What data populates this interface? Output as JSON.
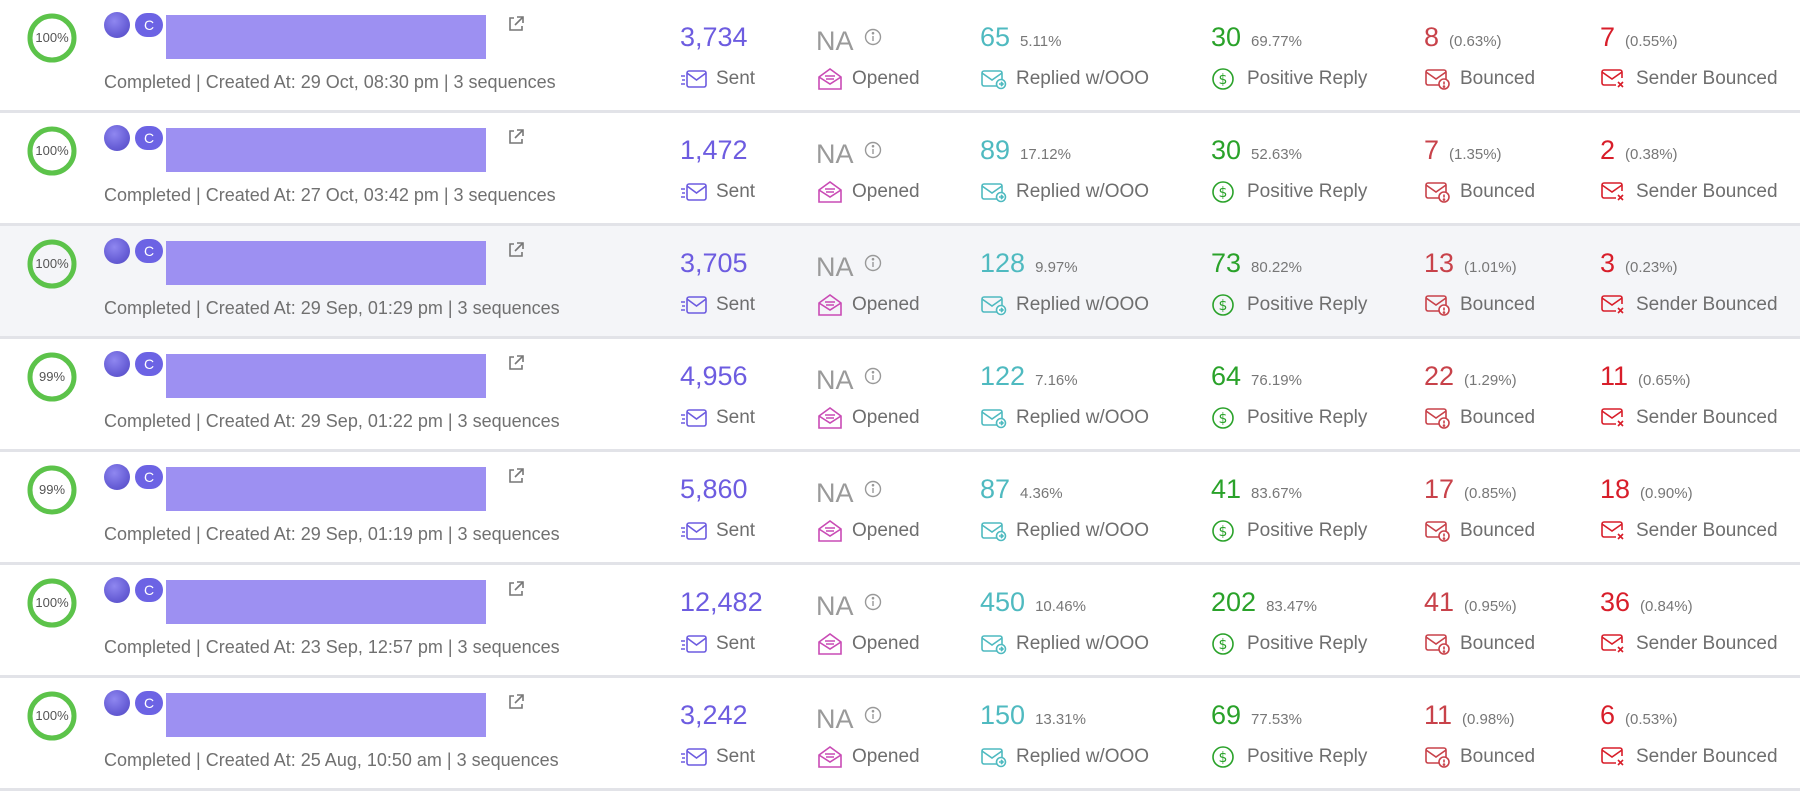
{
  "labels": {
    "sent": "Sent",
    "opened": "Opened",
    "replied": "Replied w/OOO",
    "positive": "Positive Reply",
    "bounced": "Bounced",
    "sender_bounced": "Sender Bounced",
    "avatar_letter": "C"
  },
  "colors": {
    "progress_ring": "#5cc34a",
    "sent": "#6d5ce0",
    "opened_na": "#9a9a9a",
    "replied": "#4fbac0",
    "positive": "#2aa22a",
    "bounced": "#c8424a",
    "sender_bounced": "#d81e2a",
    "redaction": "#9d90f2"
  },
  "icons": {
    "ring": "progress-ring",
    "avatar": "campaign-avatar",
    "external": "external-link-icon",
    "info": "info-icon",
    "sent": "send-mail-icon",
    "opened": "opened-mail-icon",
    "replied": "reply-mail-icon",
    "positive": "dollar-circle-icon",
    "bounced": "bounce-mail-icon",
    "sender_bounced": "sender-bounce-mail-icon"
  },
  "campaigns": [
    {
      "progress": "100%",
      "progress_value": 1.0,
      "subline": "Completed | Created At: 29 Oct, 08:30 pm | 3 sequences",
      "sent": "3,734",
      "opened": "NA",
      "replied": "65",
      "replied_pct": "5.11%",
      "positive": "30",
      "positive_pct": "69.77%",
      "bounced": "8",
      "bounced_pct": "(0.63%)",
      "sender_bounced": "7",
      "sender_bounced_pct": "(0.55%)"
    },
    {
      "progress": "100%",
      "progress_value": 1.0,
      "subline": "Completed | Created At: 27 Oct, 03:42 pm | 3 sequences",
      "sent": "1,472",
      "opened": "NA",
      "replied": "89",
      "replied_pct": "17.12%",
      "positive": "30",
      "positive_pct": "52.63%",
      "bounced": "7",
      "bounced_pct": "(1.35%)",
      "sender_bounced": "2",
      "sender_bounced_pct": "(0.38%)"
    },
    {
      "progress": "100%",
      "progress_value": 1.0,
      "subline": "Completed | Created At: 29 Sep, 01:29 pm | 3 sequences",
      "sent": "3,705",
      "opened": "NA",
      "replied": "128",
      "replied_pct": "9.97%",
      "positive": "73",
      "positive_pct": "80.22%",
      "bounced": "13",
      "bounced_pct": "(1.01%)",
      "sender_bounced": "3",
      "sender_bounced_pct": "(0.23%)"
    },
    {
      "progress": "99%",
      "progress_value": 0.99,
      "subline": "Completed | Created At: 29 Sep, 01:22 pm | 3 sequences",
      "sent": "4,956",
      "opened": "NA",
      "replied": "122",
      "replied_pct": "7.16%",
      "positive": "64",
      "positive_pct": "76.19%",
      "bounced": "22",
      "bounced_pct": "(1.29%)",
      "sender_bounced": "11",
      "sender_bounced_pct": "(0.65%)"
    },
    {
      "progress": "99%",
      "progress_value": 0.99,
      "subline": "Completed | Created At: 29 Sep, 01:19 pm | 3 sequences",
      "sent": "5,860",
      "opened": "NA",
      "replied": "87",
      "replied_pct": "4.36%",
      "positive": "41",
      "positive_pct": "83.67%",
      "bounced": "17",
      "bounced_pct": "(0.85%)",
      "sender_bounced": "18",
      "sender_bounced_pct": "(0.90%)"
    },
    {
      "progress": "100%",
      "progress_value": 1.0,
      "subline": "Completed | Created At: 23 Sep, 12:57 pm | 3 sequences",
      "sent": "12,482",
      "opened": "NA",
      "replied": "450",
      "replied_pct": "10.46%",
      "positive": "202",
      "positive_pct": "83.47%",
      "bounced": "41",
      "bounced_pct": "(0.95%)",
      "sender_bounced": "36",
      "sender_bounced_pct": "(0.84%)"
    },
    {
      "progress": "100%",
      "progress_value": 1.0,
      "subline": "Completed | Created At: 25 Aug, 10:50 am | 3 sequences",
      "sent": "3,242",
      "opened": "NA",
      "replied": "150",
      "replied_pct": "13.31%",
      "positive": "69",
      "positive_pct": "77.53%",
      "bounced": "11",
      "bounced_pct": "(0.98%)",
      "sender_bounced": "6",
      "sender_bounced_pct": "(0.53%)"
    }
  ]
}
